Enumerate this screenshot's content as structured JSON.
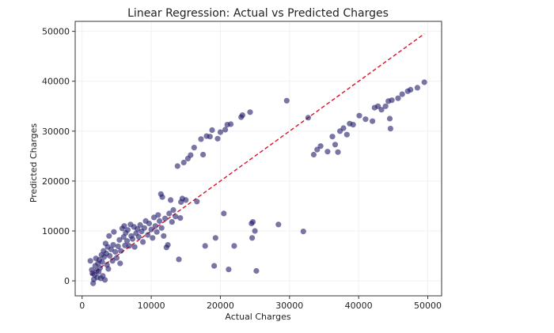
{
  "chart_data": {
    "type": "scatter",
    "title": "Linear Regression: Actual vs Predicted Charges",
    "xlabel": "Actual Charges",
    "ylabel": "Predicted Charges",
    "xlim": [
      -1000,
      52000
    ],
    "ylim": [
      -3000,
      52000
    ],
    "xticks": [
      0,
      10000,
      20000,
      30000,
      40000,
      50000
    ],
    "yticks": [
      0,
      10000,
      20000,
      30000,
      40000,
      50000
    ],
    "xtick_labels": [
      "0",
      "10000",
      "20000",
      "30000",
      "40000",
      "50000"
    ],
    "ytick_labels": [
      "0",
      "10000",
      "20000",
      "30000",
      "40000",
      "50000"
    ],
    "grid": true,
    "point_color": "#1f1a6b",
    "point_opacity": 0.6,
    "reference_line": {
      "x": [
        1200,
        49500
      ],
      "y": [
        1200,
        49500
      ],
      "color": "#e0102a",
      "style": "dashed"
    },
    "points": [
      {
        "x": 1200,
        "y": 4000
      },
      {
        "x": 1400,
        "y": 2200
      },
      {
        "x": 1500,
        "y": 1500
      },
      {
        "x": 1600,
        "y": -500
      },
      {
        "x": 1700,
        "y": 300
      },
      {
        "x": 1800,
        "y": 1200
      },
      {
        "x": 1900,
        "y": 3000
      },
      {
        "x": 2000,
        "y": 4500
      },
      {
        "x": 2100,
        "y": 2000
      },
      {
        "x": 2200,
        "y": 700
      },
      {
        "x": 2300,
        "y": 3500
      },
      {
        "x": 2400,
        "y": 1800
      },
      {
        "x": 2500,
        "y": 4200
      },
      {
        "x": 2600,
        "y": 2600
      },
      {
        "x": 2700,
        "y": 500
      },
      {
        "x": 2800,
        "y": 5200
      },
      {
        "x": 2900,
        "y": 3800
      },
      {
        "x": 3000,
        "y": 1000
      },
      {
        "x": 3100,
        "y": 6000
      },
      {
        "x": 3200,
        "y": 4800
      },
      {
        "x": 3300,
        "y": 200
      },
      {
        "x": 3400,
        "y": 7500
      },
      {
        "x": 3500,
        "y": 5500
      },
      {
        "x": 3600,
        "y": 3200
      },
      {
        "x": 3700,
        "y": 6800
      },
      {
        "x": 3800,
        "y": 2400
      },
      {
        "x": 3900,
        "y": 9000
      },
      {
        "x": 4000,
        "y": 5000
      },
      {
        "x": 4200,
        "y": 6300
      },
      {
        "x": 4400,
        "y": 4000
      },
      {
        "x": 4500,
        "y": 7200
      },
      {
        "x": 4600,
        "y": 9800
      },
      {
        "x": 4800,
        "y": 5800
      },
      {
        "x": 5000,
        "y": 4600
      },
      {
        "x": 5200,
        "y": 6900
      },
      {
        "x": 5400,
        "y": 8200
      },
      {
        "x": 5500,
        "y": 3500
      },
      {
        "x": 5600,
        "y": 6000
      },
      {
        "x": 5800,
        "y": 10500
      },
      {
        "x": 6000,
        "y": 8800
      },
      {
        "x": 6100,
        "y": 11000
      },
      {
        "x": 6200,
        "y": 7100
      },
      {
        "x": 6300,
        "y": 9600
      },
      {
        "x": 6500,
        "y": 8000
      },
      {
        "x": 6600,
        "y": 10200
      },
      {
        "x": 6800,
        "y": 7000
      },
      {
        "x": 7000,
        "y": 11300
      },
      {
        "x": 7100,
        "y": 9000
      },
      {
        "x": 7300,
        "y": 8400
      },
      {
        "x": 7500,
        "y": 10800
      },
      {
        "x": 7600,
        "y": 6800
      },
      {
        "x": 7800,
        "y": 9500
      },
      {
        "x": 8000,
        "y": 10400
      },
      {
        "x": 8200,
        "y": 8800
      },
      {
        "x": 8400,
        "y": 11200
      },
      {
        "x": 8600,
        "y": 9900
      },
      {
        "x": 8800,
        "y": 7800
      },
      {
        "x": 9000,
        "y": 10600
      },
      {
        "x": 9200,
        "y": 12000
      },
      {
        "x": 9500,
        "y": 9200
      },
      {
        "x": 9700,
        "y": 11500
      },
      {
        "x": 10000,
        "y": 10300
      },
      {
        "x": 10200,
        "y": 8600
      },
      {
        "x": 10400,
        "y": 12700
      },
      {
        "x": 10600,
        "y": 11000
      },
      {
        "x": 10800,
        "y": 9800
      },
      {
        "x": 11000,
        "y": 13200
      },
      {
        "x": 11200,
        "y": 12000
      },
      {
        "x": 11400,
        "y": 17400
      },
      {
        "x": 11500,
        "y": 10600
      },
      {
        "x": 11600,
        "y": 16800
      },
      {
        "x": 11800,
        "y": 9000
      },
      {
        "x": 12000,
        "y": 12500
      },
      {
        "x": 12200,
        "y": 6700
      },
      {
        "x": 12400,
        "y": 7200
      },
      {
        "x": 12600,
        "y": 13500
      },
      {
        "x": 12800,
        "y": 16200
      },
      {
        "x": 13000,
        "y": 11800
      },
      {
        "x": 13200,
        "y": 14200
      },
      {
        "x": 13500,
        "y": 12900
      },
      {
        "x": 13800,
        "y": 23000
      },
      {
        "x": 14000,
        "y": 4300
      },
      {
        "x": 14200,
        "y": 12600
      },
      {
        "x": 14300,
        "y": 15800
      },
      {
        "x": 14500,
        "y": 16500
      },
      {
        "x": 14700,
        "y": 23700
      },
      {
        "x": 15000,
        "y": 16200
      },
      {
        "x": 15300,
        "y": 24500
      },
      {
        "x": 15700,
        "y": 25200
      },
      {
        "x": 16200,
        "y": 26700
      },
      {
        "x": 16600,
        "y": 15900
      },
      {
        "x": 17200,
        "y": 28400
      },
      {
        "x": 17500,
        "y": 25300
      },
      {
        "x": 17800,
        "y": 7000
      },
      {
        "x": 18000,
        "y": 29000
      },
      {
        "x": 18500,
        "y": 28900
      },
      {
        "x": 18800,
        "y": 30200
      },
      {
        "x": 19100,
        "y": 3000
      },
      {
        "x": 19300,
        "y": 8600
      },
      {
        "x": 19600,
        "y": 28500
      },
      {
        "x": 20000,
        "y": 29800
      },
      {
        "x": 20500,
        "y": 13500
      },
      {
        "x": 20700,
        "y": 30300
      },
      {
        "x": 21000,
        "y": 31300
      },
      {
        "x": 21200,
        "y": 2300
      },
      {
        "x": 21500,
        "y": 31400
      },
      {
        "x": 22000,
        "y": 7000
      },
      {
        "x": 23000,
        "y": 32800
      },
      {
        "x": 23200,
        "y": 33200
      },
      {
        "x": 24300,
        "y": 33800
      },
      {
        "x": 24500,
        "y": 11500
      },
      {
        "x": 24600,
        "y": 8600
      },
      {
        "x": 24700,
        "y": 11800
      },
      {
        "x": 25000,
        "y": 10000
      },
      {
        "x": 25200,
        "y": 2000
      },
      {
        "x": 28400,
        "y": 11300
      },
      {
        "x": 29600,
        "y": 36100
      },
      {
        "x": 32000,
        "y": 9900
      },
      {
        "x": 32700,
        "y": 32700
      },
      {
        "x": 33500,
        "y": 25300
      },
      {
        "x": 34000,
        "y": 26300
      },
      {
        "x": 34500,
        "y": 27000
      },
      {
        "x": 35500,
        "y": 25900
      },
      {
        "x": 36200,
        "y": 28900
      },
      {
        "x": 36600,
        "y": 27300
      },
      {
        "x": 37000,
        "y": 25800
      },
      {
        "x": 37300,
        "y": 30000
      },
      {
        "x": 37800,
        "y": 30600
      },
      {
        "x": 38300,
        "y": 29300
      },
      {
        "x": 38700,
        "y": 31500
      },
      {
        "x": 39200,
        "y": 31300
      },
      {
        "x": 40100,
        "y": 33100
      },
      {
        "x": 41000,
        "y": 32400
      },
      {
        "x": 42000,
        "y": 32000
      },
      {
        "x": 42300,
        "y": 34700
      },
      {
        "x": 42800,
        "y": 35000
      },
      {
        "x": 43300,
        "y": 34300
      },
      {
        "x": 43900,
        "y": 35000
      },
      {
        "x": 44300,
        "y": 36000
      },
      {
        "x": 44500,
        "y": 32500
      },
      {
        "x": 44600,
        "y": 30500
      },
      {
        "x": 44800,
        "y": 36200
      },
      {
        "x": 45700,
        "y": 36600
      },
      {
        "x": 46300,
        "y": 37400
      },
      {
        "x": 47100,
        "y": 38000
      },
      {
        "x": 47500,
        "y": 38300
      },
      {
        "x": 48500,
        "y": 38700
      },
      {
        "x": 49500,
        "y": 39800
      }
    ]
  }
}
